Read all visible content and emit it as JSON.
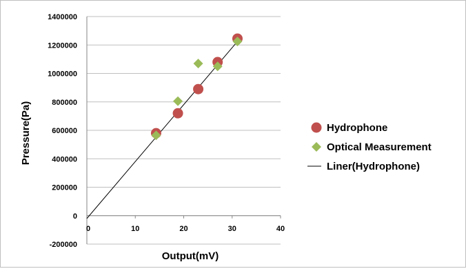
{
  "chart_data": {
    "type": "scatter",
    "xlabel": "Output(mV)",
    "ylabel": "Pressure(Pa)",
    "xlim": [
      0,
      40
    ],
    "ylim": [
      -200000,
      1400000
    ],
    "x_ticks": [
      0,
      10,
      20,
      30,
      40
    ],
    "y_ticks": [
      -200000,
      0,
      200000,
      400000,
      600000,
      800000,
      1000000,
      1200000,
      1400000
    ],
    "x_tick_labels": [
      "0",
      "10",
      "20",
      "30",
      "40"
    ],
    "y_tick_labels": [
      "-200000",
      "0",
      "200000",
      "400000",
      "600000",
      "800000",
      "1000000",
      "1200000",
      "1400000"
    ],
    "grid": "horizontal",
    "legend_position": "right",
    "series": [
      {
        "name": "Hydrophone",
        "marker": "circle",
        "color": "#c0504d",
        "points": [
          {
            "x": 14.3,
            "y": 580000
          },
          {
            "x": 18.8,
            "y": 720000
          },
          {
            "x": 23.0,
            "y": 890000
          },
          {
            "x": 27.0,
            "y": 1080000
          },
          {
            "x": 31.1,
            "y": 1245000
          }
        ]
      },
      {
        "name": "Optical Measurement",
        "marker": "diamond",
        "color": "#9bbb59",
        "points": [
          {
            "x": 14.3,
            "y": 565000
          },
          {
            "x": 18.8,
            "y": 805000
          },
          {
            "x": 23.0,
            "y": 1070000
          },
          {
            "x": 27.0,
            "y": 1050000
          },
          {
            "x": 31.1,
            "y": 1225000
          }
        ]
      }
    ],
    "trendline": {
      "name": "Liner(Hydrophone)",
      "color": "#000000",
      "from": {
        "x": 0,
        "y": -20000
      },
      "to": {
        "x": 31.1,
        "y": 1225000
      }
    }
  }
}
